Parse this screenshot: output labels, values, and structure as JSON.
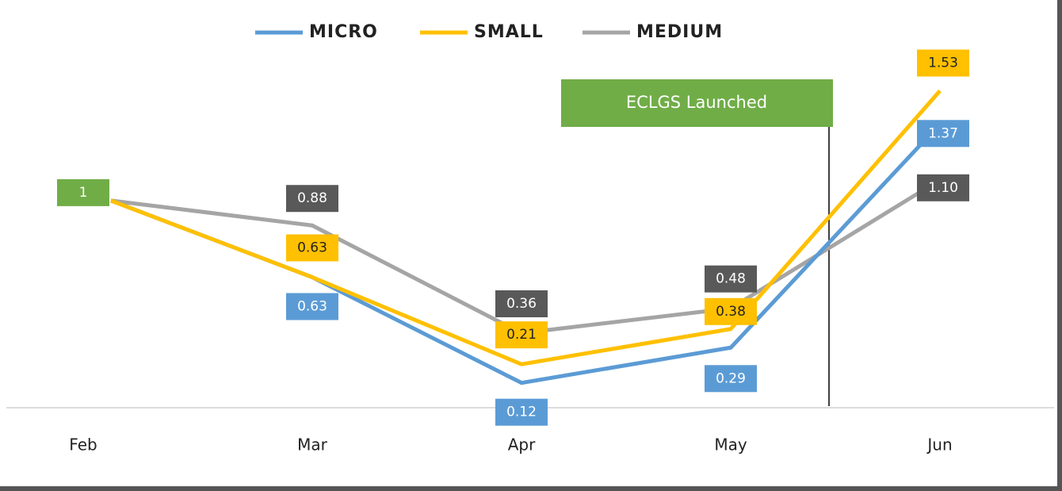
{
  "chart_data": {
    "type": "line",
    "categories": [
      "Feb",
      "Mar",
      "Apr",
      "May",
      "Jun"
    ],
    "series": [
      {
        "name": "MICRO",
        "color": "#5b9bd5",
        "values": [
          1,
          0.63,
          0.12,
          0.29,
          1.37
        ],
        "value_labels": [
          null,
          "0.63",
          "0.12",
          "0.29",
          "1.37"
        ]
      },
      {
        "name": "SMALL",
        "color": "#ffc000",
        "values": [
          1,
          0.63,
          0.21,
          0.38,
          1.53
        ],
        "value_labels": [
          null,
          "0.63",
          "0.21",
          "0.38",
          "1.53"
        ]
      },
      {
        "name": "MEDIUM",
        "color": "#a5a5a5",
        "values": [
          1,
          0.88,
          0.36,
          0.48,
          1.1
        ],
        "value_labels": [
          "1",
          "0.88",
          "0.36",
          "0.48",
          "1.10"
        ]
      }
    ],
    "ylim": [
      0,
      1.8
    ],
    "annotation": "ECLGS Launched"
  }
}
